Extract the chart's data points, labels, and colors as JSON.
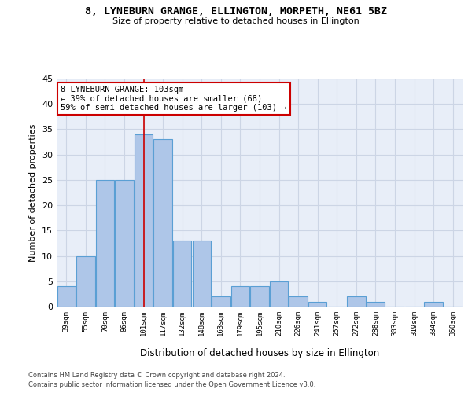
{
  "title1": "8, LYNEBURN GRANGE, ELLINGTON, MORPETH, NE61 5BZ",
  "title2": "Size of property relative to detached houses in Ellington",
  "xlabel": "Distribution of detached houses by size in Ellington",
  "ylabel": "Number of detached properties",
  "bin_labels": [
    "39sqm",
    "55sqm",
    "70sqm",
    "86sqm",
    "101sqm",
    "117sqm",
    "132sqm",
    "148sqm",
    "163sqm",
    "179sqm",
    "195sqm",
    "210sqm",
    "226sqm",
    "241sqm",
    "257sqm",
    "272sqm",
    "288sqm",
    "303sqm",
    "319sqm",
    "334sqm",
    "350sqm"
  ],
  "bar_values": [
    4,
    10,
    25,
    25,
    34,
    33,
    13,
    13,
    2,
    4,
    4,
    5,
    2,
    1,
    0,
    2,
    1,
    0,
    0,
    1,
    0
  ],
  "bar_color": "#aec6e8",
  "bar_edge_color": "#5a9fd4",
  "property_line_index": 4,
  "annotation_line1": "8 LYNEBURN GRANGE: 103sqm",
  "annotation_line2": "← 39% of detached houses are smaller (68)",
  "annotation_line3": "59% of semi-detached houses are larger (103) →",
  "annotation_box_color": "#ffffff",
  "annotation_box_edge_color": "#cc0000",
  "vline_color": "#cc0000",
  "ylim": [
    0,
    45
  ],
  "yticks": [
    0,
    5,
    10,
    15,
    20,
    25,
    30,
    35,
    40,
    45
  ],
  "grid_color": "#ccd5e5",
  "background_color": "#e8eef8",
  "footer_line1": "Contains HM Land Registry data © Crown copyright and database right 2024.",
  "footer_line2": "Contains public sector information licensed under the Open Government Licence v3.0."
}
